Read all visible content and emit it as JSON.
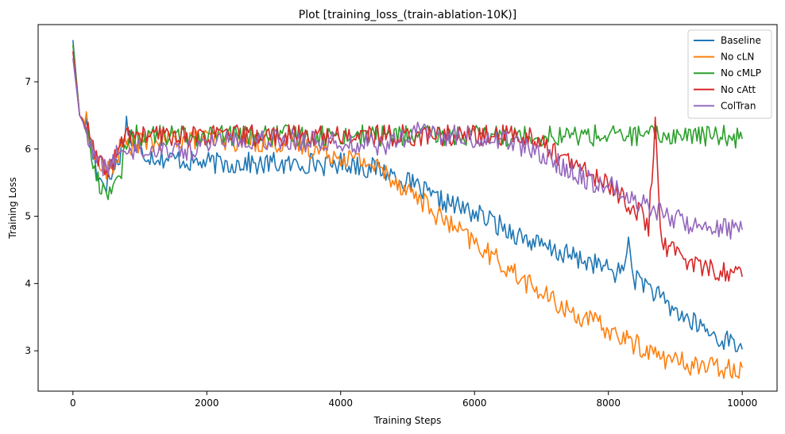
{
  "chart_data": {
    "type": "line",
    "title": "Plot [training_loss_(train-ablation-10K)]",
    "xlabel": "Training Steps",
    "ylabel": "Training Loss",
    "xlim": [
      -520,
      10520
    ],
    "ylim": [
      2.4,
      7.85
    ],
    "xticks": [
      0,
      2000,
      4000,
      6000,
      8000,
      10000
    ],
    "yticks": [
      3,
      4,
      5,
      6,
      7
    ],
    "grid": false,
    "legend_position": "top-right",
    "x": [
      0,
      100,
      200,
      300,
      400,
      500,
      600,
      700,
      800,
      900,
      1000,
      1200,
      1400,
      1600,
      1800,
      2000,
      2200,
      2400,
      2600,
      2800,
      3000,
      3200,
      3400,
      3600,
      3800,
      4000,
      4200,
      4400,
      4600,
      4800,
      5000,
      5200,
      5400,
      5600,
      5800,
      6000,
      6200,
      6400,
      6600,
      6800,
      7000,
      7200,
      7400,
      7600,
      7800,
      8000,
      8200,
      8300,
      8350,
      8400,
      8500,
      8600,
      8700,
      8750,
      8800,
      8900,
      9000,
      9200,
      9400,
      9600,
      9800,
      10000
    ],
    "series": [
      {
        "name": "Baseline",
        "color": "#1f77b4",
        "values": [
          7.62,
          6.5,
          6.35,
          5.9,
          5.55,
          5.5,
          5.65,
          5.9,
          6.4,
          6.05,
          5.95,
          5.9,
          5.85,
          5.85,
          5.8,
          5.8,
          5.78,
          5.78,
          5.8,
          5.75,
          5.8,
          5.75,
          5.78,
          5.8,
          5.75,
          5.8,
          5.78,
          5.72,
          5.7,
          5.6,
          5.5,
          5.4,
          5.25,
          5.2,
          5.12,
          5.05,
          4.95,
          4.85,
          4.75,
          4.65,
          4.55,
          4.48,
          4.42,
          4.35,
          4.3,
          4.2,
          4.15,
          4.6,
          4.3,
          4.05,
          4.05,
          3.95,
          3.85,
          3.8,
          3.75,
          3.65,
          3.6,
          3.45,
          3.35,
          3.2,
          3.15,
          3.02
        ]
      },
      {
        "name": "No cLN",
        "color": "#ff7f0e",
        "values": [
          7.55,
          6.5,
          6.4,
          6.0,
          5.75,
          5.65,
          5.75,
          6.0,
          6.1,
          6.05,
          6.1,
          6.1,
          6.15,
          6.15,
          6.15,
          6.15,
          6.15,
          6.12,
          6.12,
          6.1,
          6.1,
          6.08,
          6.05,
          6.0,
          5.95,
          5.9,
          5.85,
          5.8,
          5.7,
          5.55,
          5.4,
          5.25,
          5.05,
          4.9,
          4.75,
          4.6,
          4.45,
          4.3,
          4.15,
          4.0,
          3.85,
          3.72,
          3.6,
          3.5,
          3.42,
          3.3,
          3.2,
          3.15,
          3.12,
          3.1,
          3.05,
          3.0,
          2.95,
          2.93,
          2.9,
          2.88,
          2.85,
          2.8,
          2.78,
          2.75,
          2.75,
          2.75
        ]
      },
      {
        "name": "No cMLP",
        "color": "#2ca02c",
        "values": [
          7.55,
          6.5,
          6.35,
          5.75,
          5.45,
          5.4,
          5.42,
          5.5,
          6.15,
          6.2,
          6.2,
          6.2,
          6.2,
          6.2,
          6.2,
          6.2,
          6.2,
          6.2,
          6.2,
          6.2,
          6.2,
          6.2,
          6.2,
          6.2,
          6.2,
          6.2,
          6.2,
          6.2,
          6.2,
          6.2,
          6.2,
          6.2,
          6.2,
          6.2,
          6.2,
          6.2,
          6.2,
          6.2,
          6.2,
          6.2,
          6.2,
          6.2,
          6.2,
          6.2,
          6.2,
          6.2,
          6.2,
          6.2,
          6.2,
          6.2,
          6.2,
          6.2,
          6.2,
          6.2,
          6.2,
          6.2,
          6.2,
          6.2,
          6.2,
          6.2,
          6.2,
          6.15
        ]
      },
      {
        "name": "No cAtt",
        "color": "#d62728",
        "values": [
          7.45,
          6.5,
          6.35,
          6.0,
          5.75,
          5.7,
          5.8,
          6.0,
          6.25,
          6.2,
          6.2,
          6.2,
          6.2,
          6.2,
          6.2,
          6.2,
          6.2,
          6.2,
          6.2,
          6.2,
          6.2,
          6.2,
          6.2,
          6.2,
          6.2,
          6.2,
          6.2,
          6.2,
          6.2,
          6.2,
          6.2,
          6.2,
          6.2,
          6.2,
          6.2,
          6.2,
          6.2,
          6.2,
          6.2,
          6.2,
          6.1,
          5.95,
          5.8,
          5.7,
          5.6,
          5.45,
          5.3,
          5.2,
          5.15,
          5.1,
          5.0,
          4.85,
          6.35,
          5.5,
          4.5,
          4.55,
          4.45,
          4.35,
          4.25,
          4.2,
          4.15,
          4.1
        ]
      },
      {
        "name": "ColTran",
        "color": "#9467bd",
        "values": [
          7.35,
          6.5,
          6.3,
          5.9,
          5.8,
          5.7,
          5.85,
          5.95,
          6.0,
          6.0,
          6.0,
          6.0,
          6.0,
          6.0,
          5.95,
          6.1,
          6.15,
          6.15,
          6.15,
          6.15,
          6.15,
          6.15,
          6.12,
          6.12,
          6.1,
          6.1,
          6.08,
          6.08,
          6.05,
          6.1,
          6.15,
          6.3,
          6.2,
          6.2,
          6.2,
          6.15,
          6.15,
          6.15,
          6.1,
          6.0,
          5.9,
          5.8,
          5.7,
          5.6,
          5.5,
          5.45,
          5.38,
          5.32,
          5.28,
          5.25,
          5.2,
          5.15,
          5.1,
          5.1,
          5.05,
          5.0,
          4.95,
          4.9,
          4.88,
          4.85,
          4.82,
          4.8
        ]
      }
    ]
  }
}
